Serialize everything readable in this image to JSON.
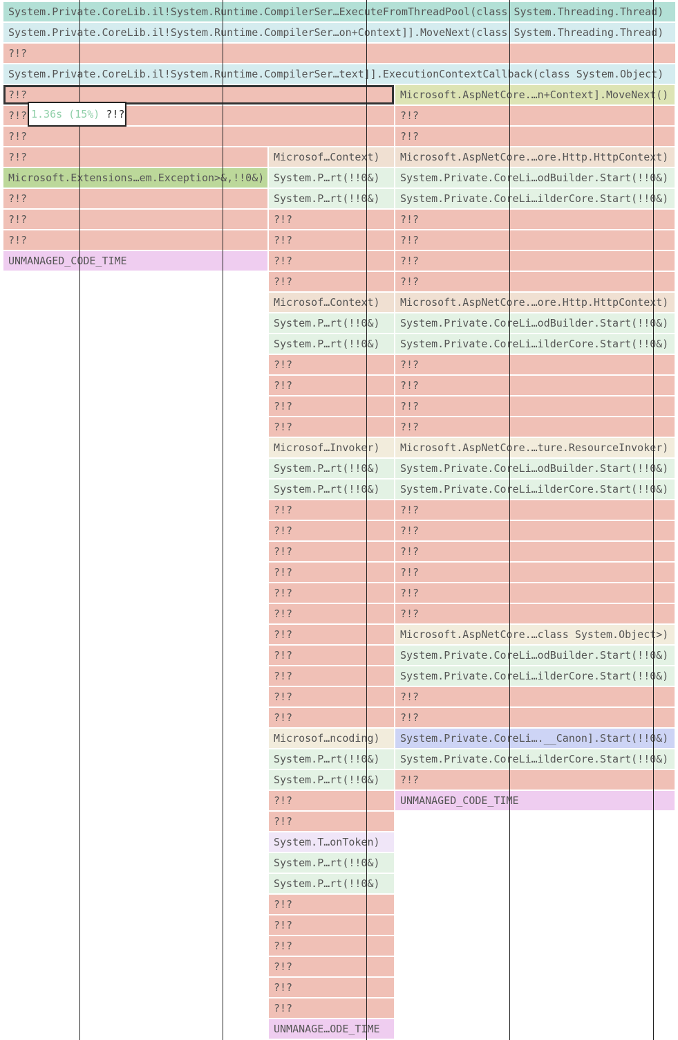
{
  "rows": [
    [
      "System.Private.CoreLib.il!System.Runtime.CompilerSer…ExecuteFromThreadPool(class System.Threading.Thread)"
    ],
    [
      "System.Private.CoreLib.il!System.Runtime.CompilerSer…on+Context]].MoveNext(class System.Threading.Thread)"
    ],
    [
      "?!?"
    ],
    [
      "System.Private.CoreLib.il!System.Runtime.CompilerSer…text]].ExecutionContextCallback(class System.Object)"
    ],
    [
      "?!?",
      "Microsoft.AspNetCore.…n+Context].MoveNext()"
    ],
    [
      "?!?",
      "?!?"
    ],
    [
      "?!?",
      "?!?"
    ],
    [
      "?!?",
      "Microsof…Context)",
      "Microsoft.AspNetCore.…ore.Http.HttpContext)"
    ],
    [
      "Microsoft.Extensions…em.Exception>&,!!0&)",
      "System.P…rt(!!0&)",
      "System.Private.CoreLi…odBuilder.Start(!!0&)"
    ],
    [
      "?!?",
      "System.P…rt(!!0&)",
      "System.Private.CoreLi…ilderCore.Start(!!0&)"
    ],
    [
      "?!?",
      "?!?",
      "?!?"
    ],
    [
      "?!?",
      "?!?",
      "?!?"
    ],
    [
      "UNMANAGED_CODE_TIME",
      "?!?",
      "?!?"
    ],
    [
      "?!?",
      "?!?"
    ],
    [
      "Microsof…Context)",
      "Microsoft.AspNetCore.…ore.Http.HttpContext)"
    ],
    [
      "System.P…rt(!!0&)",
      "System.Private.CoreLi…odBuilder.Start(!!0&)"
    ],
    [
      "System.P…rt(!!0&)",
      "System.Private.CoreLi…ilderCore.Start(!!0&)"
    ],
    [
      "?!?",
      "?!?"
    ],
    [
      "?!?",
      "?!?"
    ],
    [
      "?!?",
      "?!?"
    ],
    [
      "?!?",
      "?!?"
    ],
    [
      "Microsof…Invoker)",
      "Microsoft.AspNetCore.…ture.ResourceInvoker)"
    ],
    [
      "System.P…rt(!!0&)",
      "System.Private.CoreLi…odBuilder.Start(!!0&)"
    ],
    [
      "System.P…rt(!!0&)",
      "System.Private.CoreLi…ilderCore.Start(!!0&)"
    ],
    [
      "?!?",
      "?!?"
    ],
    [
      "?!?",
      "?!?"
    ],
    [
      "?!?",
      "?!?"
    ],
    [
      "?!?",
      "?!?"
    ],
    [
      "?!?",
      "?!?"
    ],
    [
      "?!?",
      "?!?"
    ],
    [
      "?!?",
      "Microsoft.AspNetCore.…class System.Object>)"
    ],
    [
      "?!?",
      "System.Private.CoreLi…odBuilder.Start(!!0&)"
    ],
    [
      "?!?",
      "System.Private.CoreLi…ilderCore.Start(!!0&)"
    ],
    [
      "?!?",
      "?!?"
    ],
    [
      "?!?",
      "?!?"
    ],
    [
      "Microsof…ncoding)",
      "System.Private.CoreLi….__Canon].Start(!!0&)"
    ],
    [
      "System.P…rt(!!0&)",
      "System.Private.CoreLi…ilderCore.Start(!!0&)"
    ],
    [
      "System.P…rt(!!0&)",
      "?!?"
    ],
    [
      "?!?",
      "UNMANAGED_CODE_TIME"
    ],
    [
      "?!?"
    ],
    [
      "System.T…onToken)"
    ],
    [
      "System.P…rt(!!0&)"
    ],
    [
      "System.P…rt(!!0&)"
    ],
    [
      "?!?"
    ],
    [
      "?!?"
    ],
    [
      "?!?"
    ],
    [
      "?!?"
    ],
    [
      "?!?"
    ],
    [
      "?!?"
    ],
    [
      "UNMANAGE…ODE_TIME"
    ]
  ],
  "tooltip": {
    "time": "1.36s (15%)",
    "name": "?!?"
  }
}
